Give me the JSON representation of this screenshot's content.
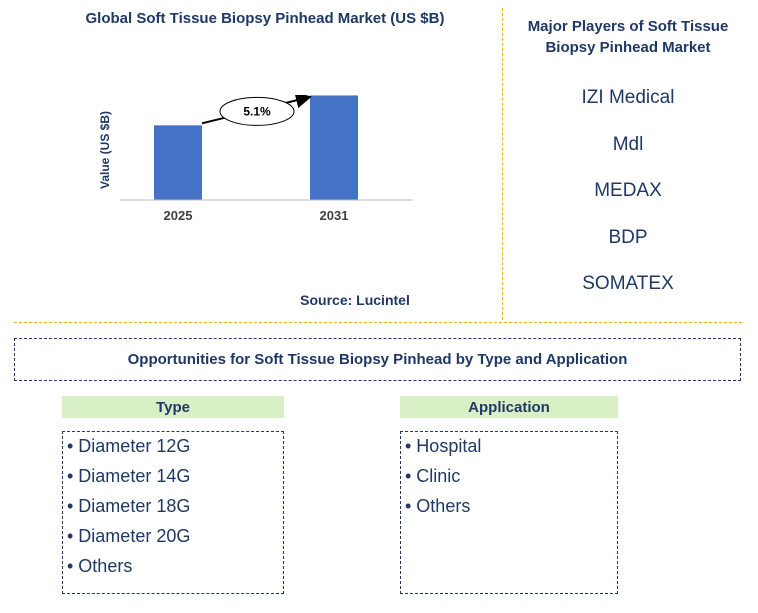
{
  "chart_data": {
    "type": "bar",
    "title": "Global Soft Tissue Biopsy Pinhead Market (US $B)",
    "ylabel": "Value (US $B)",
    "categories": [
      "2025",
      "2031"
    ],
    "values": [
      1.0,
      1.4
    ],
    "ylim": [
      0,
      1.5
    ],
    "annotation": "5.1%",
    "bar_color": "#4472c4",
    "source": "Source: Lucintel"
  },
  "players": {
    "title": "Major Players of Soft Tissue Biopsy Pinhead Market",
    "items": [
      "IZI Medical",
      "Mdl",
      "MEDAX",
      "BDP",
      "SOMATEX"
    ]
  },
  "opportunities": {
    "title": "Opportunities for Soft Tissue Biopsy Pinhead by Type and Application",
    "type_header": "Type",
    "type_items": [
      "• Diameter 12G",
      "• Diameter 14G",
      "• Diameter 18G",
      "• Diameter 20G",
      "• Others"
    ],
    "application_header": "Application",
    "application_items": [
      "• Hospital",
      "• Clinic",
      "• Others"
    ]
  },
  "colors": {
    "text": "#1f3864",
    "divider": "#e6b800",
    "header_fill": "#d9f0c6"
  }
}
